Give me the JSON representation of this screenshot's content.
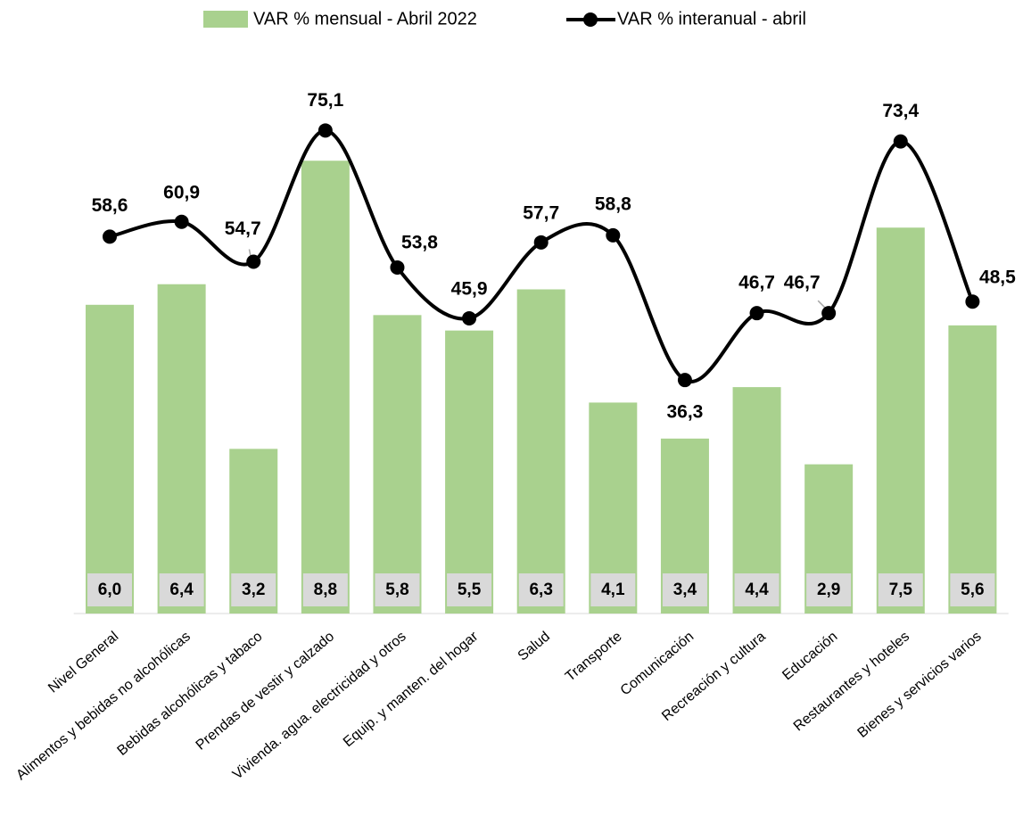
{
  "chart_data": {
    "type": "bar-line",
    "categories": [
      "Nivel General",
      "Alimentos y bebidas no alcohólicas",
      "Bebidas alcohólicas y tabaco",
      "Prendas de vestir y calzado",
      "Vivienda. agua. electricidad y otros",
      "Equip. y manten. del hogar",
      "Salud",
      "Transporte",
      "Comunicación",
      "Recreación y cultura",
      "Educación",
      "Restaurantes y hoteles",
      "Bienes y servicios varios"
    ],
    "series": [
      {
        "name": "VAR % mensual - Abril 2022",
        "type": "bar",
        "color": "#a9d18e",
        "values": [
          6.0,
          6.4,
          3.2,
          8.8,
          5.8,
          5.5,
          6.3,
          4.1,
          3.4,
          4.4,
          2.9,
          7.5,
          5.6
        ],
        "value_labels": [
          "6,0",
          "6,4",
          "3,2",
          "8,8",
          "5,8",
          "5,5",
          "6,3",
          "4,1",
          "3,4",
          "4,4",
          "2,9",
          "7,5",
          "5,6"
        ]
      },
      {
        "name": "VAR % interanual - abril",
        "type": "line",
        "axis": "y2",
        "color": "#000000",
        "values": [
          58.6,
          60.9,
          54.7,
          75.1,
          53.8,
          45.9,
          57.7,
          58.8,
          36.3,
          46.7,
          46.7,
          73.4,
          48.5
        ],
        "value_labels": [
          "58,6",
          "60,9",
          "54,7",
          "75,1",
          "53,8",
          "45,9",
          "57,7",
          "58,8",
          "36,3",
          "46,7",
          "46,7",
          "73,4",
          "48,5"
        ]
      }
    ],
    "ylim": [
      0,
      10
    ],
    "y2lim": [
      0,
      80
    ],
    "legend": "top",
    "smooth": true
  }
}
